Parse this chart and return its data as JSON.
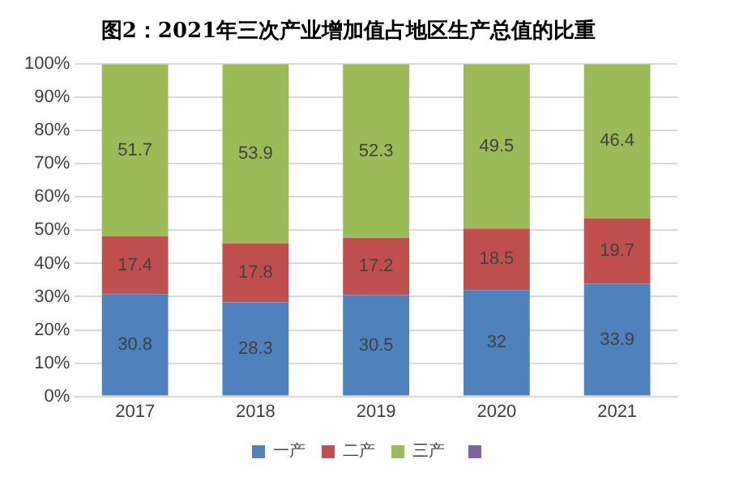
{
  "chart_data": {
    "type": "bar",
    "stacked": true,
    "title": "图2：2021年三次产业增加值占地区生产总值的比重",
    "categories": [
      "2017",
      "2018",
      "2019",
      "2020",
      "2021"
    ],
    "series": [
      {
        "name": "一产",
        "color": "#4f81bd",
        "values": [
          30.8,
          28.3,
          30.5,
          32,
          33.9
        ]
      },
      {
        "name": "二产",
        "color": "#c0504d",
        "values": [
          17.4,
          17.8,
          17.2,
          18.5,
          19.7
        ]
      },
      {
        "name": "三产",
        "color": "#9bbb59",
        "values": [
          51.7,
          53.9,
          52.3,
          49.5,
          46.4
        ]
      }
    ],
    "ylim": [
      0,
      100
    ],
    "yticks": [
      {
        "value": 0,
        "label": "0%"
      },
      {
        "value": 10,
        "label": "10%"
      },
      {
        "value": 20,
        "label": "20%"
      },
      {
        "value": 30,
        "label": "30%"
      },
      {
        "value": 40,
        "label": "40%"
      },
      {
        "value": 50,
        "label": "50%"
      },
      {
        "value": 60,
        "label": "60%"
      },
      {
        "value": 70,
        "label": "70%"
      },
      {
        "value": 80,
        "label": "80%"
      },
      {
        "value": 90,
        "label": "90%"
      },
      {
        "value": 100,
        "label": "100%"
      }
    ],
    "grid": "y",
    "legend": "bottom",
    "data_labels": true
  }
}
